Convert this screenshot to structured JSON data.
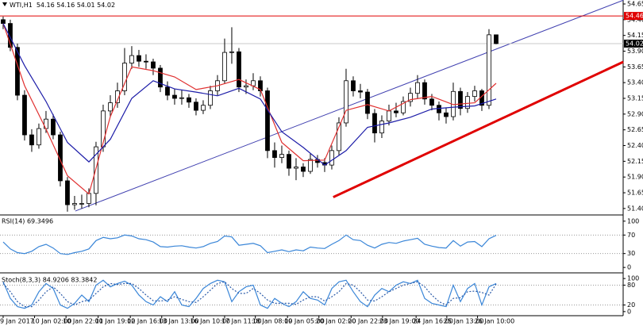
{
  "header": {
    "symbol": "WTI,H1",
    "ohlc": "54.16 54.16 54.01 54.02"
  },
  "chart_data": [
    {
      "type": "candlestick",
      "up_color": "#ffffff",
      "down_color": "#000000",
      "xlim": [
        -0.44,
        86.78
      ],
      "ylim": [
        51.31,
        54.713
      ],
      "yticks": [
        54.65,
        {
          "value": 54.4,
          "label": "54.40"
        },
        54.15,
        {
          "value": 53.9,
          "label": "53.90"
        },
        53.65,
        {
          "value": 53.4,
          "label": "53.40"
        },
        53.15,
        {
          "value": 52.9,
          "label": "52.90"
        },
        52.65,
        {
          "value": 52.4,
          "label": "52.40"
        },
        52.15,
        {
          "value": 51.9,
          "label": "51.90"
        },
        51.65,
        {
          "value": 51.4,
          "label": "51.40"
        }
      ],
      "xticks": [
        {
          "value": 0,
          "label": "9 Jan 2017"
        },
        {
          "value": 4.4,
          "label": "10 Jan 02:00"
        },
        {
          "value": 8.8,
          "label": "10 Jan 22:00"
        },
        {
          "value": 13.3,
          "label": "11 Jan 19:00"
        },
        {
          "value": 17.8,
          "label": "12 Jan 16:00"
        },
        {
          "value": 22.2,
          "label": "13 Jan 13:00"
        },
        {
          "value": 26.6,
          "label": "16 Jan 10:00"
        },
        {
          "value": 31,
          "label": "17 Jan 11:00"
        },
        {
          "value": 35.3,
          "label": "18 Jan 08:00"
        },
        {
          "value": 39.8,
          "label": "19 Jan 05:00"
        },
        {
          "value": 44.2,
          "label": "20 Jan 02:00"
        },
        {
          "value": 48.7,
          "label": "20 Jan 22:00"
        },
        {
          "value": 53.1,
          "label": "23 Jan 19:00"
        },
        {
          "value": 57.8,
          "label": "24 Jan 16:00"
        },
        {
          "value": 62.1,
          "label": "25 Jan 13:00"
        },
        {
          "value": 66.4,
          "label": "26 Jan 10:00"
        }
      ],
      "ohlc": [
        [
          54.4,
          54.45,
          54.25,
          54.34
        ],
        [
          54.34,
          54.4,
          53.9,
          53.96
        ],
        [
          53.96,
          54.02,
          53.12,
          53.2
        ],
        [
          53.2,
          53.28,
          52.48,
          52.57
        ],
        [
          52.57,
          52.66,
          52.3,
          52.41
        ],
        [
          52.41,
          52.75,
          52.35,
          52.67
        ],
        [
          52.67,
          52.95,
          52.6,
          52.82
        ],
        [
          52.82,
          52.9,
          52.5,
          52.57
        ],
        [
          52.57,
          52.62,
          51.75,
          51.84
        ],
        [
          51.84,
          51.9,
          51.35,
          51.46
        ],
        [
          51.46,
          51.6,
          51.38,
          51.48
        ],
        [
          51.48,
          51.62,
          51.4,
          51.48
        ],
        [
          51.48,
          51.72,
          51.42,
          51.64
        ],
        [
          51.64,
          52.46,
          51.45,
          52.38
        ],
        [
          52.38,
          53.05,
          52.3,
          52.95
        ],
        [
          52.95,
          53.2,
          52.85,
          53.08
        ],
        [
          53.08,
          53.4,
          53.0,
          53.27
        ],
        [
          53.27,
          53.95,
          53.2,
          53.71
        ],
        [
          53.71,
          53.98,
          53.62,
          53.83
        ],
        [
          53.83,
          53.92,
          53.65,
          53.74
        ],
        [
          53.74,
          53.85,
          53.62,
          53.73
        ],
        [
          53.73,
          53.78,
          53.52,
          53.63
        ],
        [
          53.63,
          53.68,
          53.25,
          53.33
        ],
        [
          53.33,
          53.42,
          53.12,
          53.2
        ],
        [
          53.2,
          53.3,
          53.05,
          53.15
        ],
        [
          53.15,
          53.28,
          53.05,
          53.16
        ],
        [
          53.16,
          53.22,
          53.0,
          53.09
        ],
        [
          53.09,
          53.15,
          52.88,
          52.96
        ],
        [
          52.96,
          53.12,
          52.9,
          53.04
        ],
        [
          53.04,
          53.35,
          52.98,
          53.27
        ],
        [
          53.27,
          53.52,
          53.2,
          53.43
        ],
        [
          53.43,
          54.1,
          53.38,
          53.88
        ],
        [
          53.88,
          54.28,
          53.7,
          53.89
        ],
        [
          53.89,
          53.95,
          53.25,
          53.33
        ],
        [
          53.33,
          53.45,
          53.22,
          53.35
        ],
        [
          53.35,
          53.55,
          53.28,
          53.43
        ],
        [
          53.43,
          53.5,
          53.18,
          53.27
        ],
        [
          53.27,
          53.32,
          52.2,
          52.32
        ],
        [
          52.32,
          52.45,
          52.05,
          52.21
        ],
        [
          52.21,
          52.4,
          52.12,
          52.26
        ],
        [
          52.26,
          52.32,
          51.92,
          52.04
        ],
        [
          52.04,
          52.2,
          51.85,
          52.06
        ],
        [
          52.06,
          52.12,
          51.9,
          51.99
        ],
        [
          51.99,
          52.28,
          51.95,
          52.18
        ],
        [
          52.18,
          52.25,
          52.05,
          52.13
        ],
        [
          52.13,
          52.2,
          51.98,
          52.09
        ],
        [
          52.09,
          52.4,
          52.02,
          52.32
        ],
        [
          52.32,
          52.85,
          52.25,
          52.76
        ],
        [
          52.76,
          53.62,
          52.7,
          53.43
        ],
        [
          53.43,
          53.5,
          53.18,
          53.27
        ],
        [
          53.27,
          53.38,
          53.15,
          53.25
        ],
        [
          53.25,
          53.3,
          52.82,
          52.91
        ],
        [
          52.91,
          52.98,
          52.45,
          52.6
        ],
        [
          52.6,
          52.88,
          52.52,
          52.79
        ],
        [
          52.79,
          53.05,
          52.72,
          52.95
        ],
        [
          52.95,
          53.08,
          52.85,
          52.92
        ],
        [
          52.92,
          53.18,
          52.88,
          53.1
        ],
        [
          53.1,
          53.32,
          53.02,
          53.23
        ],
        [
          53.23,
          53.52,
          53.15,
          53.4
        ],
        [
          53.4,
          53.45,
          53.05,
          53.14
        ],
        [
          53.14,
          53.22,
          52.96,
          53.04
        ],
        [
          53.04,
          53.1,
          52.8,
          52.92
        ],
        [
          52.92,
          53.0,
          52.75,
          52.86
        ],
        [
          52.86,
          53.4,
          52.8,
          53.26
        ],
        [
          53.26,
          53.32,
          52.88,
          52.99
        ],
        [
          52.99,
          53.25,
          52.92,
          53.18
        ],
        [
          53.18,
          53.35,
          53.1,
          53.27
        ],
        [
          53.27,
          53.3,
          52.95,
          53.04
        ],
        [
          53.04,
          54.25,
          52.98,
          54.16
        ],
        [
          54.16,
          54.16,
          54.01,
          54.02
        ]
      ],
      "series": [
        {
          "color": "#e03030",
          "x": [
            0,
            3,
            6,
            9,
            12,
            15,
            18,
            21,
            24,
            27,
            30,
            33,
            36,
            39,
            42,
            45,
            48,
            51,
            54,
            57,
            60,
            63,
            66,
            69
          ],
          "values": [
            54.34,
            53.35,
            52.66,
            51.92,
            51.63,
            52.86,
            53.65,
            53.59,
            53.49,
            53.29,
            53.35,
            53.45,
            53.29,
            52.45,
            52.16,
            52.17,
            52.96,
            53.05,
            52.95,
            53.13,
            53.18,
            53.05,
            53.08,
            53.39
          ]
        },
        {
          "color": "#1c1ca8",
          "x": [
            0,
            3,
            6,
            9,
            12,
            15,
            18,
            21,
            24,
            27,
            30,
            33,
            36,
            39,
            42,
            45,
            48,
            51,
            54,
            57,
            60,
            63,
            66,
            69
          ],
          "values": [
            54.34,
            53.67,
            53.1,
            52.45,
            52.14,
            52.5,
            53.15,
            53.43,
            53.3,
            53.25,
            53.19,
            53.31,
            53.14,
            52.62,
            52.37,
            52.09,
            52.32,
            52.69,
            52.76,
            52.85,
            52.98,
            53.01,
            53.03,
            53.14
          ]
        }
      ],
      "hlines": [
        {
          "value": 54.46,
          "color": "#e00000",
          "line_color": "#e00000"
        },
        {
          "value": 54.02,
          "color": "#000000",
          "line_color": "#c8c8c8"
        }
      ],
      "trendlines": [
        {
          "x": [
            10.1,
            86.8
          ],
          "y": [
            51.36,
            54.71
          ],
          "color": "#4040b0",
          "width": 1
        },
        {
          "x": [
            46.2,
            86.8
          ],
          "y": [
            51.58,
            53.73
          ],
          "color": "#e00000",
          "width": 3
        }
      ]
    },
    {
      "type": "line",
      "title": "RSI(14) 69.3496",
      "ylim": [
        -10,
        110
      ],
      "yticks": [
        100,
        70,
        30,
        0
      ],
      "levels": [
        70,
        30
      ],
      "series": [
        {
          "color": "#3a86d8",
          "values": [
            55,
            40,
            32,
            30,
            35,
            45,
            50,
            42,
            30,
            28,
            32,
            35,
            40,
            58,
            65,
            62,
            64,
            70,
            68,
            62,
            60,
            55,
            45,
            44,
            46,
            47,
            44,
            42,
            45,
            52,
            56,
            68,
            66,
            48,
            50,
            52,
            47,
            32,
            35,
            38,
            34,
            38,
            36,
            44,
            42,
            41,
            50,
            58,
            70,
            60,
            58,
            48,
            42,
            50,
            54,
            52,
            57,
            60,
            63,
            50,
            46,
            43,
            42,
            58,
            46,
            55,
            56,
            45,
            62,
            69.3496
          ]
        }
      ]
    },
    {
      "type": "line",
      "title": "Stoch(8,3,3) 84.9206 83.3842",
      "ylim": [
        -10,
        110
      ],
      "yticks": [
        100,
        80,
        20,
        0
      ],
      "levels": [
        80,
        20
      ],
      "series": [
        {
          "color": "#3a86d8",
          "values": [
            90,
            40,
            15,
            10,
            20,
            60,
            85,
            70,
            20,
            10,
            25,
            50,
            30,
            80,
            95,
            75,
            85,
            92,
            80,
            50,
            30,
            20,
            45,
            30,
            60,
            20,
            15,
            40,
            70,
            85,
            95,
            90,
            30,
            60,
            75,
            80,
            20,
            10,
            40,
            25,
            15,
            30,
            60,
            40,
            35,
            20,
            70,
            90,
            95,
            60,
            30,
            15,
            50,
            70,
            60,
            80,
            90,
            85,
            95,
            40,
            25,
            20,
            15,
            80,
            30,
            70,
            85,
            20,
            75,
            84.9206
          ]
        },
        {
          "color": "#2a5aa8",
          "dash": true,
          "values": [
            85,
            60,
            30,
            15,
            15,
            35,
            60,
            75,
            55,
            30,
            20,
            30,
            35,
            55,
            75,
            85,
            82,
            85,
            85,
            70,
            50,
            33,
            32,
            35,
            45,
            37,
            30,
            28,
            45,
            65,
            85,
            90,
            70,
            55,
            55,
            70,
            55,
            35,
            25,
            25,
            25,
            22,
            35,
            45,
            45,
            32,
            45,
            60,
            85,
            80,
            60,
            35,
            32,
            45,
            60,
            70,
            80,
            85,
            90,
            75,
            50,
            30,
            20,
            40,
            42,
            60,
            62,
            58,
            50,
            83.3842
          ]
        }
      ]
    }
  ]
}
